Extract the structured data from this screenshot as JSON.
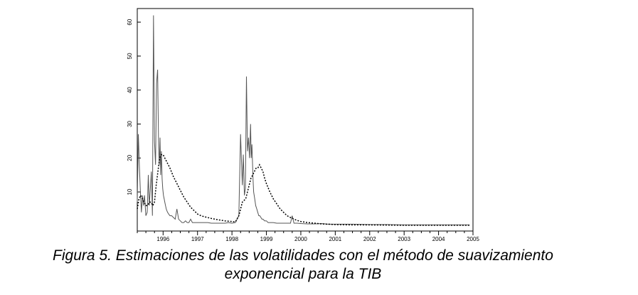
{
  "chart_data": {
    "type": "line",
    "title": "",
    "xlabel": "",
    "ylabel": "",
    "x_ticks": [
      "1996",
      "1997",
      "1998",
      "1999",
      "2000",
      "2001",
      "2002",
      "2003",
      "2004",
      "2005"
    ],
    "y_ticks": [
      10,
      20,
      30,
      40,
      50,
      60
    ],
    "xlim": [
      1995.25,
      2005.0
    ],
    "ylim": [
      -1.5,
      64
    ],
    "grid": false,
    "series": [
      {
        "style": "solid",
        "color": "#555555",
        "x": [
          1995.25,
          1995.28,
          1995.31,
          1995.34,
          1995.37,
          1995.4,
          1995.43,
          1995.46,
          1995.5,
          1995.54,
          1995.57,
          1995.6,
          1995.63,
          1995.66,
          1995.69,
          1995.72,
          1995.75,
          1995.78,
          1995.81,
          1995.84,
          1995.87,
          1995.89,
          1995.91,
          1995.93,
          1995.95,
          1995.97,
          1995.99,
          1996.01,
          1996.03,
          1996.05,
          1996.07,
          1996.09,
          1996.11,
          1996.13,
          1996.16,
          1996.2,
          1996.25,
          1996.3,
          1996.35,
          1996.4,
          1996.45,
          1996.5,
          1996.55,
          1996.6,
          1996.65,
          1996.7,
          1996.75,
          1996.8,
          1996.85,
          1996.9,
          1996.95,
          1997.0,
          1997.1,
          1997.2,
          1997.3,
          1997.4,
          1997.5,
          1997.6,
          1997.7,
          1997.8,
          1997.9,
          1998.0,
          1998.1,
          1998.2,
          1998.25,
          1998.3,
          1998.33,
          1998.36,
          1998.39,
          1998.42,
          1998.45,
          1998.48,
          1998.51,
          1998.54,
          1998.56,
          1998.58,
          1998.61,
          1998.63,
          1998.66,
          1998.69,
          1998.72,
          1998.75,
          1998.78,
          1998.81,
          1998.84,
          1998.87,
          1998.9,
          1998.95,
          1999.0,
          1999.05,
          1999.1,
          1999.15,
          1999.2,
          1999.3,
          1999.4,
          1999.5,
          1999.6,
          1999.7,
          1999.75,
          1999.8,
          1999.9,
          2000.0,
          2000.2,
          2000.4,
          2000.6,
          2000.8,
          2001.0,
          2001.5,
          2002.0,
          2002.5,
          2003.0,
          2003.5,
          2004.0,
          2004.5,
          2004.9
        ],
        "y": [
          7,
          27,
          18,
          10,
          4,
          9,
          6,
          9,
          3,
          4,
          15,
          6,
          11,
          16,
          3,
          62,
          25,
          18,
          42,
          46,
          23,
          18,
          26,
          15,
          22,
          14,
          11,
          9,
          8,
          7,
          6,
          5,
          4.5,
          4,
          3.5,
          3,
          3,
          2.5,
          2,
          5,
          2,
          1.5,
          1,
          1,
          1.5,
          1,
          1,
          2,
          1,
          1,
          1,
          1,
          1,
          1,
          1,
          0.8,
          0.8,
          0.8,
          0.8,
          0.8,
          1,
          0.8,
          1,
          3,
          27,
          12,
          21,
          9,
          11,
          44,
          22,
          26,
          20,
          30,
          20,
          24,
          14,
          10,
          8,
          6,
          5,
          4,
          3,
          3,
          2.5,
          2,
          2,
          1.5,
          1.5,
          1,
          1,
          1,
          1,
          0.8,
          0.8,
          0.8,
          0.8,
          0.8,
          3,
          0.8,
          0.8,
          0.7,
          0.6,
          0.6,
          0.7,
          0.5,
          0.5,
          0.5,
          0.4,
          0.4,
          0.3,
          0.3,
          0.3,
          0.3,
          0.3
        ]
      },
      {
        "style": "dotted",
        "color": "#000000",
        "x": [
          1995.25,
          1995.3,
          1995.35,
          1995.4,
          1995.45,
          1995.5,
          1995.55,
          1995.6,
          1995.65,
          1995.7,
          1995.75,
          1995.8,
          1995.85,
          1995.9,
          1995.95,
          1996.0,
          1996.05,
          1996.1,
          1996.15,
          1996.2,
          1996.3,
          1996.4,
          1996.5,
          1996.6,
          1996.7,
          1996.8,
          1996.9,
          1997.0,
          1997.1,
          1997.2,
          1997.4,
          1997.6,
          1997.8,
          1998.0,
          1998.1,
          1998.2,
          1998.3,
          1998.4,
          1998.5,
          1998.55,
          1998.6,
          1998.65,
          1998.7,
          1998.75,
          1998.8,
          1998.85,
          1998.9,
          1998.95,
          1999.0,
          1999.1,
          1999.2,
          1999.3,
          1999.4,
          1999.5,
          1999.6,
          1999.7,
          1999.8,
          1999.9,
          2000.0,
          2000.2,
          2000.4,
          2000.6,
          2000.8,
          2001.0,
          2001.5,
          2002.0,
          2003.0,
          2004.0,
          2004.9
        ],
        "y": [
          5,
          8,
          9,
          8,
          7,
          6,
          6,
          7,
          7,
          6,
          7,
          12,
          16,
          20,
          21,
          21,
          20,
          19,
          18,
          17,
          14.5,
          12.5,
          10.5,
          8.5,
          7,
          5.5,
          4.5,
          3.5,
          3,
          2.7,
          2.2,
          1.8,
          1.5,
          1.3,
          1.2,
          3,
          7,
          8,
          12,
          14,
          15,
          16,
          17,
          17,
          18,
          17,
          16,
          14,
          12.5,
          10,
          8,
          6.5,
          5,
          4,
          3,
          2.5,
          2,
          1.6,
          1.3,
          1,
          0.8,
          0.6,
          0.5,
          0.4,
          0.3,
          0.3,
          0.2,
          0.2,
          0.2
        ]
      }
    ]
  },
  "caption": {
    "line1": "Figura 5. Estimaciones de las volatilidades con el método de suavizamiento",
    "line2": "exponencial  para la TIB"
  }
}
